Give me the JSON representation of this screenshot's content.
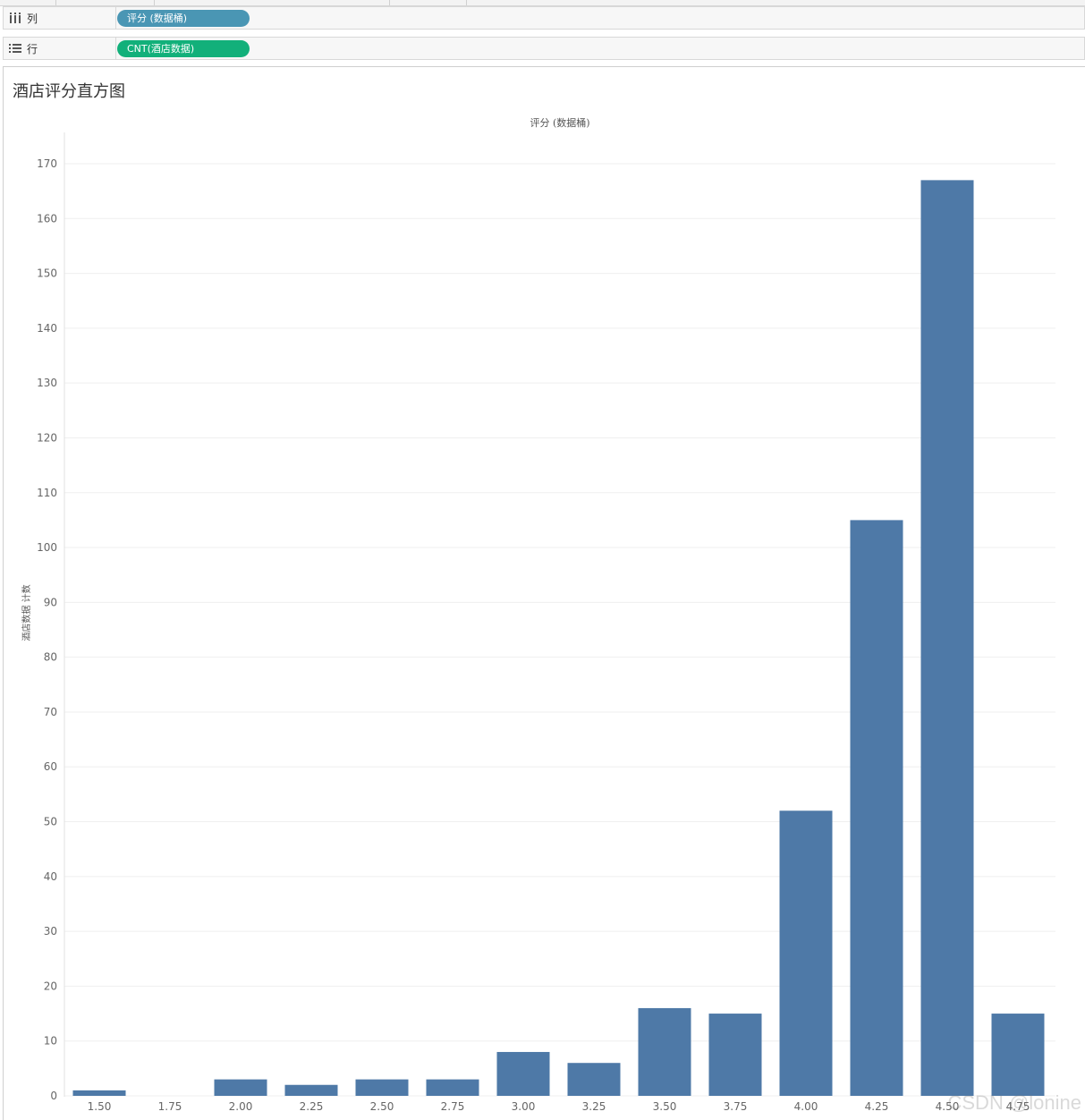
{
  "shelves": {
    "columns": {
      "label": "列",
      "pill": "评分 (数据桶)"
    },
    "rows": {
      "label": "行",
      "pill": "CNT(酒店数据)"
    }
  },
  "worksheet": {
    "title": "酒店评分直方图"
  },
  "watermark": "CSDN @lonine",
  "colors": {
    "bar": "#4e79a7",
    "pill_columns": "#4a96b4",
    "pill_rows": "#12b07a",
    "grid": "#efefef"
  },
  "chart_data": {
    "type": "bar",
    "title": "酒店评分直方图",
    "xlabel": "评分 (数据桶)",
    "ylabel": "酒店数据 计数",
    "categories": [
      "1.50",
      "1.75",
      "2.00",
      "2.25",
      "2.50",
      "2.75",
      "3.00",
      "3.25",
      "3.50",
      "3.75",
      "4.00",
      "4.25",
      "4.50",
      "4.75"
    ],
    "values": [
      1,
      0,
      3,
      2,
      3,
      3,
      8,
      6,
      16,
      15,
      52,
      105,
      167,
      15
    ],
    "ylim": [
      0,
      170
    ],
    "yticks": [
      0,
      10,
      20,
      30,
      40,
      50,
      60,
      70,
      80,
      90,
      100,
      110,
      120,
      130,
      140,
      150,
      160,
      170
    ],
    "grid": true,
    "legend": "none"
  }
}
